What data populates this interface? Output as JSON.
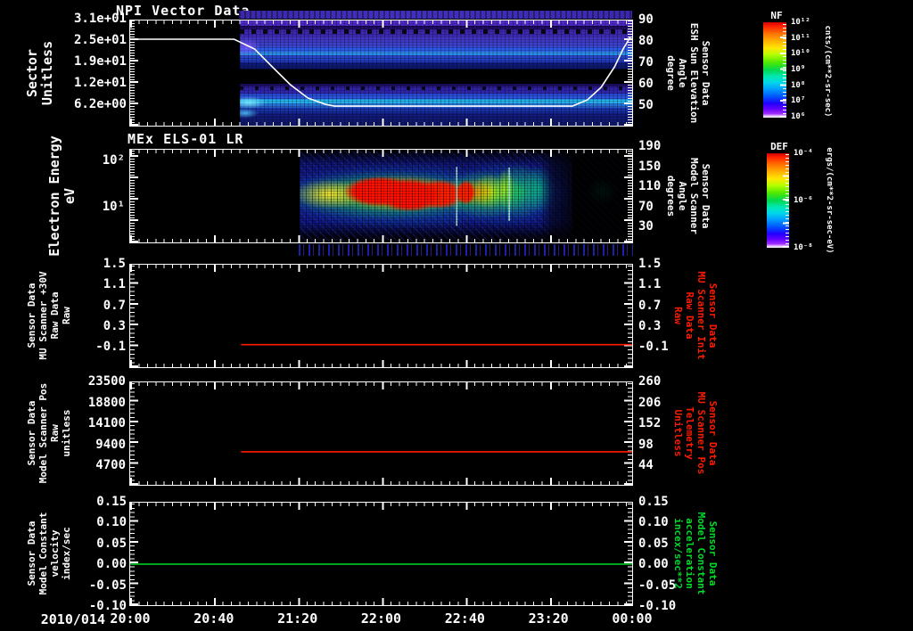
{
  "colors": {
    "background": "#000000",
    "axis": "#ffffff",
    "red": "#ff1a00",
    "green": "#00dc28"
  },
  "x_axis": {
    "date": "2010/014",
    "ticks": [
      "20:00",
      "20:40",
      "21:20",
      "22:00",
      "22:40",
      "23:20",
      "00:00"
    ]
  },
  "panels": {
    "p1": {
      "title": "NPI Vector Data",
      "left_label": [
        "Sector",
        "Unitless"
      ],
      "left_ticks": [
        "3.1e+01",
        "2.5e+01",
        "1.9e+01",
        "1.2e+01",
        "6.2e+00"
      ],
      "right_ticks": [
        "90",
        "80",
        "70",
        "60",
        "50"
      ],
      "right_label": [
        "Sensor Data",
        "ESH Sun Elevation",
        "Angle",
        "degree"
      ],
      "label_color": "#ffffff"
    },
    "p2": {
      "title": "MEx ELS-01 LR",
      "left_label": [
        "Electron Energy",
        "eV"
      ],
      "left_ticks": [
        "10²",
        "10¹"
      ],
      "right_ticks": [
        "190",
        "150",
        "110",
        "70",
        "30"
      ],
      "right_label": [
        "Sensor Data",
        "Model Scanner",
        "Angle",
        "degrees"
      ],
      "label_color": "#ffffff"
    },
    "p3": {
      "left_label": [
        "Sensor Data",
        "MU Scanner +30V",
        "Raw Data",
        "Raw"
      ],
      "left_ticks": [
        "1.5",
        "1.1",
        "0.7",
        "0.3",
        "-0.1"
      ],
      "right_ticks": [
        "1.5",
        "1.1",
        "0.7",
        "0.3",
        "-0.1"
      ],
      "right_label": [
        "Sensor Data",
        "MU Scanner Init",
        "Raw Data",
        "Raw"
      ],
      "label_color": "#ff1a00"
    },
    "p4": {
      "left_label": [
        "Sensor Data",
        "Model Scanner Pos",
        "Raw",
        "unitless"
      ],
      "left_ticks": [
        "23500",
        "18800",
        "14100",
        "9400",
        "4700"
      ],
      "right_ticks": [
        "260",
        "206",
        "152",
        "98",
        "44"
      ],
      "right_label": [
        "Sensor Data",
        "MU Scanner Pos",
        "Telemetry",
        "Unitless"
      ],
      "label_color": "#ff1a00"
    },
    "p5": {
      "left_label": [
        "Sensor Data",
        "Model Constant",
        "velocity",
        "index/sec"
      ],
      "left_ticks": [
        "0.15",
        "0.10",
        "0.05",
        "0.00",
        "-0.05",
        "-0.10"
      ],
      "right_ticks": [
        "0.15",
        "0.10",
        "0.05",
        "0.00",
        "-0.05",
        "-0.10"
      ],
      "right_label": [
        "Sensor Data",
        "Model Constant",
        "acceleration",
        "incex/sec**2"
      ],
      "label_color": "#00dc28"
    }
  },
  "colorbars": {
    "nf": {
      "label": "NF",
      "ticks": [
        "10¹²",
        "10¹¹",
        "10¹⁰",
        "10⁹",
        "10⁸",
        "10⁷",
        "10⁶"
      ],
      "units": "cnts/(cm**2-sr-sec)"
    },
    "def": {
      "label": "DEF",
      "ticks": [
        "10⁻⁴",
        "10⁻⁶",
        "10⁻⁸"
      ],
      "units": "ergs/(cm**2-sr-sec-eV)"
    }
  },
  "chart_data": {
    "npi_spectrogram": {
      "type": "heatmap",
      "panel": "p1",
      "title": "NPI Vector Data",
      "x_range": [
        "20:00",
        "00:00"
      ],
      "data_start_x": "20:53",
      "y_left_label": "Sector (Unitless)",
      "y_left_ticks": [
        31,
        25,
        19,
        12,
        6.2
      ],
      "y_right_label": "ESH Sun Elevation Angle (degree)",
      "y_right_ticks": [
        90,
        80,
        70,
        60,
        50
      ],
      "colorbar": "NF",
      "color_scale_range": [
        "1e6",
        "1e12"
      ],
      "units": "cnts/(cm**2-sr-sec)",
      "description": "Blue/purple horizontal sector bands with a black gap mid-panel and a bright cyan band near the bottom; counts begin ~20:53 and persist to 00:00"
    },
    "sun_elevation": {
      "type": "line",
      "panel": "p1",
      "color": "#ffffff",
      "axis": "right (degrees)",
      "points": [
        [
          "20:00",
          80
        ],
        [
          "20:50",
          80
        ],
        [
          "21:05",
          62
        ],
        [
          "21:20",
          49
        ],
        [
          "21:35",
          47
        ],
        [
          "23:30",
          47
        ],
        [
          "23:45",
          55
        ],
        [
          "23:55",
          70
        ],
        [
          "00:00",
          80
        ]
      ],
      "points_norm": [
        [
          0,
          0.178
        ],
        [
          0.207,
          0.178
        ],
        [
          0.248,
          0.271
        ],
        [
          0.283,
          0.44
        ],
        [
          0.319,
          0.61
        ],
        [
          0.354,
          0.737
        ],
        [
          0.389,
          0.797
        ],
        [
          0.407,
          0.814
        ],
        [
          0.881,
          0.814
        ],
        [
          0.911,
          0.754
        ],
        [
          0.938,
          0.636
        ],
        [
          0.965,
          0.44
        ],
        [
          0.982,
          0.271
        ],
        [
          0.996,
          0.161
        ]
      ]
    },
    "els_spectrogram": {
      "type": "heatmap",
      "panel": "p2",
      "title": "MEx ELS-01 LR",
      "x_range": [
        "20:00",
        "00:00"
      ],
      "data_start_x": "21:20",
      "y_scale": "log",
      "y_ticks_eV": [
        100,
        10
      ],
      "colorbar": "DEF",
      "color_scale_range": [
        "1e-8",
        "1e-4"
      ],
      "units": "ergs/(cm**2-sr-sec-eV)",
      "description": "Electron energy flux: yellow-green band ~10-60 eV from 21:20; intense red core 21:50-22:35; banded red/orange columns to 22:50; green-cyan streaks to 23:10; sparse faint blue flux afterwards with weak cyan patch ~23:40"
    },
    "mu_scanner_30v": {
      "type": "line",
      "panel": "p3",
      "color": "#ff1a00",
      "x_start_norm": 0.221,
      "x_end_norm": 1,
      "y_norm": 0.78,
      "approx_value": -0.05,
      "shape": "constant flat line from ~20:53 to 00:00"
    },
    "model_scanner_pos": {
      "type": "line",
      "panel": "p4",
      "color": "#ff1a00",
      "x_start_norm": 0.221,
      "x_end_norm": 1,
      "y_norm": 0.678,
      "approx_value_raw": 7600,
      "approx_value_telemetry": 85,
      "shape": "constant flat line from ~20:53 to 00:00"
    },
    "model_constant_velocity": {
      "type": "line",
      "panel": "p5",
      "color": "#00dc28",
      "x_start_norm": 0,
      "x_end_norm": 1,
      "y_norm": 0.6,
      "approx_value": 0.0,
      "shape": "constant flat line at 0.00 across full range"
    }
  }
}
